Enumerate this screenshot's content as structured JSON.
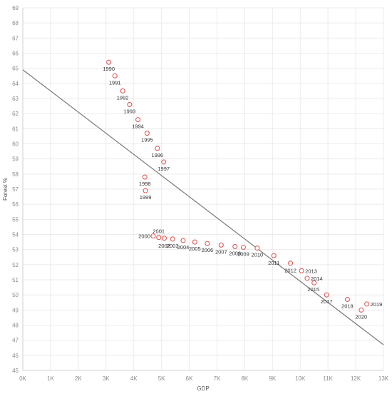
{
  "chart_data": {
    "type": "scatter",
    "xlabel": "GDP",
    "ylabel": "Forest %",
    "xlim": [
      0,
      13000
    ],
    "ylim": [
      45,
      69
    ],
    "x_ticks": [
      0,
      1000,
      2000,
      3000,
      4000,
      5000,
      6000,
      7000,
      8000,
      9000,
      10000,
      11000,
      12000,
      13000
    ],
    "x_tick_labels": [
      "0K",
      "1K",
      "2K",
      "3K",
      "4K",
      "5K",
      "6K",
      "7K",
      "8K",
      "9K",
      "10K",
      "11K",
      "12K",
      "13K"
    ],
    "y_ticks": [
      45,
      46,
      47,
      48,
      49,
      50,
      51,
      52,
      53,
      54,
      55,
      56,
      57,
      58,
      59,
      60,
      61,
      62,
      63,
      64,
      65,
      66,
      67,
      68,
      69
    ],
    "grid": true,
    "marker_color": "#e05a5a",
    "trend_color": "#7a7a7a",
    "trend_line": {
      "x": [
        0,
        13000
      ],
      "y": [
        64.9,
        46.7
      ]
    },
    "points": [
      {
        "label": "1990",
        "x": 3100,
        "y": 65.4
      },
      {
        "label": "1991",
        "x": 3320,
        "y": 64.5
      },
      {
        "label": "1992",
        "x": 3600,
        "y": 63.5
      },
      {
        "label": "1993",
        "x": 3850,
        "y": 62.6
      },
      {
        "label": "1994",
        "x": 4150,
        "y": 61.6
      },
      {
        "label": "1995",
        "x": 4480,
        "y": 60.7
      },
      {
        "label": "1996",
        "x": 4850,
        "y": 59.7
      },
      {
        "label": "1997",
        "x": 5080,
        "y": 58.8
      },
      {
        "label": "1998",
        "x": 4400,
        "y": 57.8
      },
      {
        "label": "1999",
        "x": 4420,
        "y": 56.9
      },
      {
        "label": "2000",
        "x": 4700,
        "y": 53.9
      },
      {
        "label": "2001",
        "x": 4900,
        "y": 53.8
      },
      {
        "label": "2002",
        "x": 5100,
        "y": 53.75
      },
      {
        "label": "2003",
        "x": 5400,
        "y": 53.7
      },
      {
        "label": "2004",
        "x": 5780,
        "y": 53.6
      },
      {
        "label": "2005",
        "x": 6200,
        "y": 53.5
      },
      {
        "label": "2006",
        "x": 6650,
        "y": 53.4
      },
      {
        "label": "2007",
        "x": 7150,
        "y": 53.3
      },
      {
        "label": "2008",
        "x": 7650,
        "y": 53.2
      },
      {
        "label": "2009",
        "x": 7950,
        "y": 53.15
      },
      {
        "label": "2010",
        "x": 8450,
        "y": 53.1
      },
      {
        "label": "2011",
        "x": 9050,
        "y": 52.6
      },
      {
        "label": "2012",
        "x": 9650,
        "y": 52.1
      },
      {
        "label": "2013",
        "x": 10050,
        "y": 51.6
      },
      {
        "label": "2014",
        "x": 10250,
        "y": 51.1
      },
      {
        "label": "2015",
        "x": 10500,
        "y": 50.8
      },
      {
        "label": "2017",
        "x": 10950,
        "y": 50.0
      },
      {
        "label": "2018",
        "x": 11700,
        "y": 49.7
      },
      {
        "label": "2019",
        "x": 12400,
        "y": 49.4
      },
      {
        "label": "2020",
        "x": 12200,
        "y": 49.0
      }
    ]
  }
}
